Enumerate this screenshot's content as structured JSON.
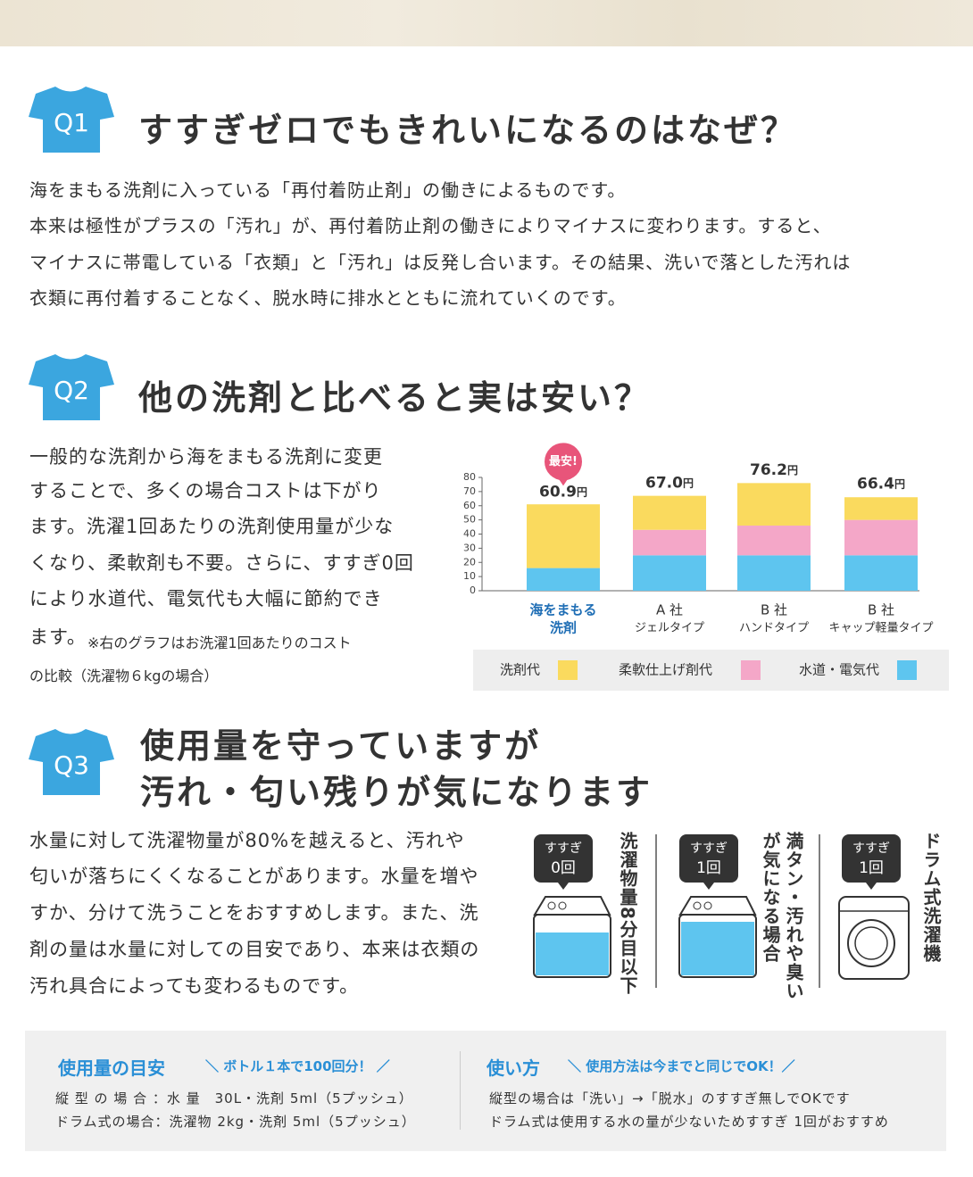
{
  "q1": {
    "badge": "Q1",
    "title": "すすぎゼロでもきれいになるのはなぜ？",
    "lines": [
      "海をまもる洗剤に入っている「再付着防止剤」の働きによるものです。",
      "本来は極性がプラスの「汚れ」が、再付着防止剤の働きによりマイナスに変わります。すると、",
      "マイナスに帯電している「衣類」と「汚れ」は反発し合います。その結果、洗いで落とした汚れは",
      "衣類に再付着することなく、脱水時に排水とともに流れていくのです。"
    ]
  },
  "q2": {
    "badge": "Q2",
    "title": "他の洗剤と比べると実は安い？",
    "lines": [
      "一般的な洗剤から海をまもる洗剤に変更",
      "することで、多くの場合コストは下がり",
      "ます。洗濯1回あたりの洗剤使用量が少な",
      "くなり、柔軟剤も不要。さらに、すすぎ0回",
      "により水道代、電気代も大幅に節約でき",
      "ます。"
    ],
    "note": [
      "※右のグラフはお洗濯1回あたりのコスト",
      "の比較（洗濯物６kgの場合）"
    ]
  },
  "chart_data": {
    "type": "stacked-bar",
    "categories": [
      [
        "海をまもる",
        "洗剤"
      ],
      [
        "A 社",
        "ジェルタイプ"
      ],
      [
        "B 社",
        "ハンドタイプ"
      ],
      [
        "B 社",
        "キャップ軽量タイプ"
      ]
    ],
    "series": [
      {
        "name": "洗剤代",
        "color": "#fada5e",
        "values": [
          45,
          24,
          30,
          16
        ]
      },
      {
        "name": "柔軟仕上げ剤代",
        "color": "#f4a7c8",
        "values": [
          0,
          18,
          21,
          25
        ]
      },
      {
        "name": "水道・電気代",
        "color": "#5ec5ef",
        "values": [
          16,
          25,
          25,
          25
        ]
      }
    ],
    "totals": [
      60.9,
      67.0,
      76.2,
      66.4
    ],
    "total_labels": [
      "60.9",
      "67.0",
      "76.2",
      "66.4"
    ],
    "total_unit": "円",
    "annotation": "最安!",
    "ylim": [
      0,
      80
    ],
    "yticks": [
      0,
      10,
      20,
      30,
      40,
      50,
      60,
      70,
      80
    ]
  },
  "q3": {
    "badge": "Q3",
    "title": [
      "使用量を守っていますが",
      "汚れ・匂い残りが気になります"
    ],
    "lines": [
      "水量に対して洗濯物量が80%を越えると、汚れや",
      "匂いが落ちにくくなることがあります。水量を増や",
      "すか、分けて洗うことをおすすめします。また、洗",
      "剤の量は水量に対しての目安であり、本来は衣類の",
      "汚れ具合によっても変わるものです。"
    ],
    "cases": [
      {
        "badge": [
          "すすぎ",
          "0回"
        ],
        "caption": [
          "洗濯物量8分目以下"
        ]
      },
      {
        "badge": [
          "すすぎ",
          "1回"
        ],
        "caption": [
          "満タン・汚れや臭い",
          "が気になる場合"
        ]
      },
      {
        "badge": [
          "すすぎ",
          "1回"
        ],
        "caption": [
          "ドラム式洗濯機"
        ]
      }
    ]
  },
  "guide": {
    "left": {
      "title": "使用量の目安",
      "tagline": "＼ ボトル１本で100回分！ ／",
      "lines": [
        "縦 型 の 場 合 ：水 量　30L・洗剤 5ml（5プッシュ）",
        "ドラム式の場合：洗濯物 2kg・洗剤 5ml（5プッシュ）"
      ]
    },
    "right": {
      "title": "使い方",
      "tagline": "＼ 使用方法は今までと同じでOK！／",
      "lines": [
        "縦型の場合は「洗い」→「脱水」のすすぎ無しでOKです",
        "ドラム式は使用する水の量が少ないためすすぎ 1回がおすすめ"
      ]
    }
  }
}
